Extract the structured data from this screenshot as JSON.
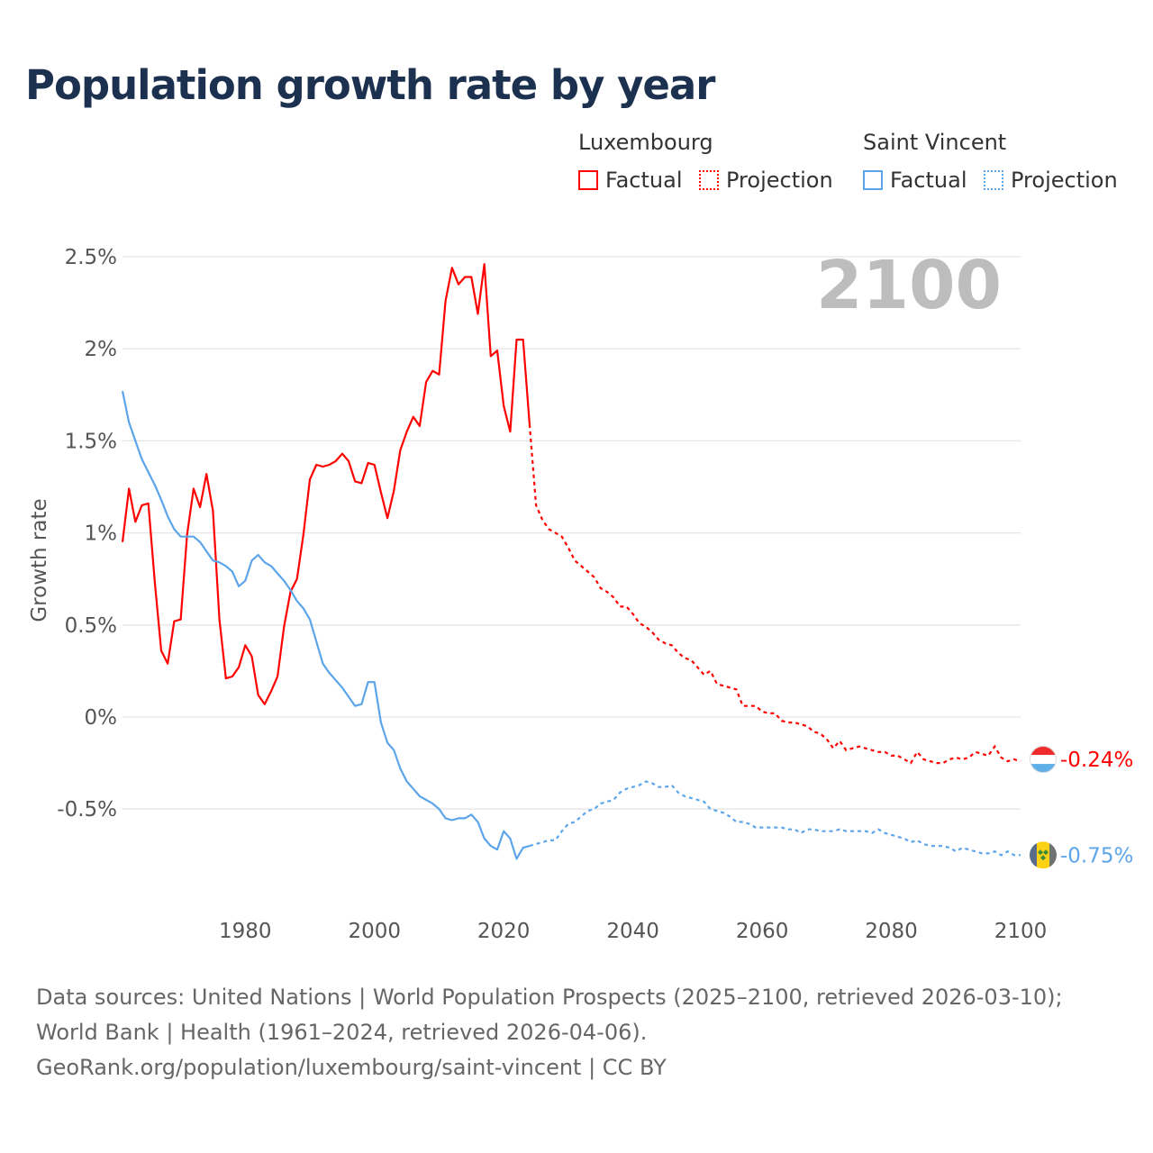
{
  "title": "Population growth rate by year",
  "legend": {
    "groups": [
      {
        "name": "Luxembourg",
        "color": "#ff0000",
        "factual": "Factual",
        "projection": "Projection"
      },
      {
        "name": "Saint Vincent",
        "color": "#5da5ea",
        "factual": "Factual",
        "projection": "Projection"
      }
    ]
  },
  "year_label": "2100",
  "footer": {
    "line1": "Data sources: United Nations | World Population Prospects (2025–2100, retrieved 2026-03-10); World Bank | Health (1961–2024, retrieved 2026-04-06).",
    "line2": "GeoRank.org/population/luxembourg/saint-vincent | CC BY"
  },
  "chart_data": {
    "type": "line",
    "title": "Population growth rate by year",
    "xlabel": "",
    "ylabel": "Growth rate",
    "xlim": [
      1961,
      2100
    ],
    "ylim": [
      -0.9,
      2.6
    ],
    "xticks": [
      1980,
      2000,
      2020,
      2040,
      2060,
      2080,
      2100
    ],
    "yticks": [
      {
        "v": 2.5,
        "label": "2.5%"
      },
      {
        "v": 2,
        "label": "2%"
      },
      {
        "v": 1.5,
        "label": "1.5%"
      },
      {
        "v": 1,
        "label": "1%"
      },
      {
        "v": 0.5,
        "label": "0.5%"
      },
      {
        "v": 0,
        "label": "0%"
      },
      {
        "v": -0.5,
        "label": "-0.5%"
      }
    ],
    "grid": true,
    "legend_position": "top-right",
    "series": [
      {
        "name": "Luxembourg",
        "color": "#ff0000",
        "end_label": "-0.24%",
        "flag": "luxembourg-flag",
        "factual_start": 1961,
        "factual": [
          0.95,
          1.24,
          1.06,
          1.15,
          1.16,
          0.73,
          0.36,
          0.29,
          0.52,
          0.53,
          0.99,
          1.24,
          1.14,
          1.32,
          1.12,
          0.53,
          0.21,
          0.22,
          0.27,
          0.39,
          0.33,
          0.12,
          0.07,
          0.14,
          0.22,
          0.49,
          0.68,
          0.75,
          0.99,
          1.29,
          1.37,
          1.36,
          1.37,
          1.39,
          1.43,
          1.39,
          1.28,
          1.27,
          1.38,
          1.37,
          1.22,
          1.08,
          1.23,
          1.45,
          1.55,
          1.63,
          1.58,
          1.82,
          1.88,
          1.86,
          2.26,
          2.44,
          2.35,
          2.39,
          2.39,
          2.19,
          2.46,
          1.96,
          1.99,
          1.69,
          1.55,
          2.05,
          2.05,
          1.59
        ],
        "projection_start": 2025,
        "projection": [
          1.15,
          1.07,
          1.02,
          1.0,
          0.98,
          0.92,
          0.85,
          0.82,
          0.79,
          0.76,
          0.7,
          0.68,
          0.65,
          0.6,
          0.6,
          0.56,
          0.51,
          0.49,
          0.46,
          0.42,
          0.4,
          0.39,
          0.35,
          0.32,
          0.31,
          0.27,
          0.23,
          0.25,
          0.18,
          0.17,
          0.16,
          0.15,
          0.06,
          0.06,
          0.06,
          0.03,
          0.02,
          0.02,
          -0.02,
          -0.03,
          -0.03,
          -0.04,
          -0.05,
          -0.08,
          -0.09,
          -0.12,
          -0.17,
          -0.13,
          -0.18,
          -0.17,
          -0.16,
          -0.17,
          -0.18,
          -0.19,
          -0.19,
          -0.21,
          -0.21,
          -0.23,
          -0.25,
          -0.19,
          -0.23,
          -0.24,
          -0.25,
          -0.25,
          -0.23,
          -0.22,
          -0.23,
          -0.22,
          -0.19,
          -0.2,
          -0.21,
          -0.16,
          -0.22,
          -0.24,
          -0.23,
          -0.24
        ]
      },
      {
        "name": "Saint Vincent",
        "color": "#5da5ea",
        "end_label": "-0.75%",
        "flag": "saint-vincent-flag",
        "factual_start": 1961,
        "factual": [
          1.77,
          1.6,
          1.5,
          1.4,
          1.33,
          1.26,
          1.18,
          1.09,
          1.02,
          0.98,
          0.98,
          0.98,
          0.95,
          0.9,
          0.85,
          0.84,
          0.82,
          0.79,
          0.71,
          0.74,
          0.85,
          0.88,
          0.84,
          0.82,
          0.78,
          0.74,
          0.69,
          0.63,
          0.59,
          0.53,
          0.41,
          0.29,
          0.24,
          0.2,
          0.16,
          0.11,
          0.06,
          0.07,
          0.19,
          0.19,
          -0.03,
          -0.14,
          -0.18,
          -0.28,
          -0.35,
          -0.39,
          -0.43,
          -0.45,
          -0.47,
          -0.5,
          -0.55,
          -0.56,
          -0.55,
          -0.55,
          -0.53,
          -0.57,
          -0.66,
          -0.7,
          -0.72,
          -0.62,
          -0.66,
          -0.77,
          -0.71,
          -0.7
        ],
        "projection_start": 2025,
        "projection": [
          -0.69,
          -0.68,
          -0.67,
          -0.67,
          -0.62,
          -0.58,
          -0.57,
          -0.54,
          -0.51,
          -0.5,
          -0.47,
          -0.46,
          -0.45,
          -0.41,
          -0.39,
          -0.38,
          -0.37,
          -0.35,
          -0.36,
          -0.38,
          -0.38,
          -0.37,
          -0.41,
          -0.43,
          -0.44,
          -0.45,
          -0.46,
          -0.5,
          -0.51,
          -0.52,
          -0.54,
          -0.57,
          -0.57,
          -0.58,
          -0.6,
          -0.6,
          -0.6,
          -0.6,
          -0.6,
          -0.61,
          -0.61,
          -0.63,
          -0.61,
          -0.61,
          -0.62,
          -0.62,
          -0.62,
          -0.61,
          -0.62,
          -0.62,
          -0.62,
          -0.62,
          -0.63,
          -0.61,
          -0.63,
          -0.64,
          -0.65,
          -0.66,
          -0.68,
          -0.67,
          -0.69,
          -0.7,
          -0.7,
          -0.7,
          -0.71,
          -0.73,
          -0.71,
          -0.72,
          -0.73,
          -0.74,
          -0.74,
          -0.73,
          -0.75,
          -0.73,
          -0.75,
          -0.75
        ]
      }
    ]
  }
}
